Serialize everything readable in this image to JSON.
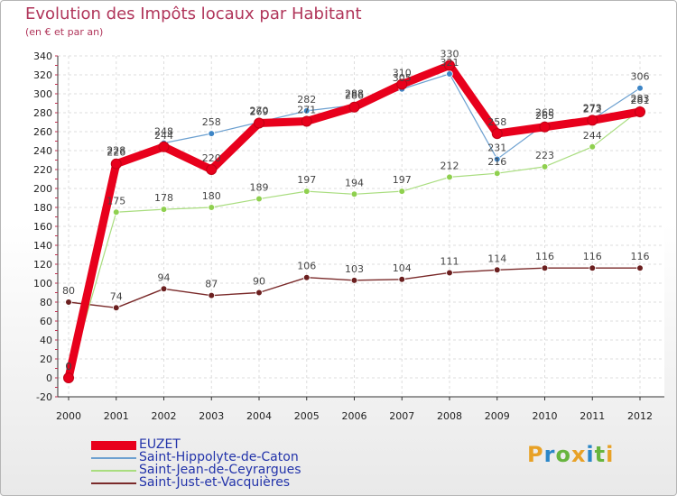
{
  "header": {
    "title": "Evolution des Impôts locaux par Habitant",
    "subtitle": "(en € et par an)"
  },
  "brand": {
    "text": "Proxiti",
    "colors": [
      "#e8a126",
      "#2a86c8",
      "#67b43e",
      "#e8a126",
      "#2a86c8",
      "#67b43e",
      "#e8a126"
    ]
  },
  "chart_data": {
    "type": "line",
    "title": "Evolution des Impôts locaux par Habitant",
    "ylabel": "(en € et par an)",
    "xlabel": "",
    "x": [
      "2000",
      "2001",
      "2002",
      "2003",
      "2004",
      "2005",
      "2006",
      "2007",
      "2008",
      "2009",
      "2010",
      "2011",
      "2012"
    ],
    "ylim": [
      -20,
      340
    ],
    "ytick_step": 20,
    "legend_position": "bottom-left",
    "series": [
      {
        "name": "EUZET",
        "color": "#e8001c",
        "values": [
          0,
          226,
          244,
          220,
          269,
          271,
          286,
          310,
          330,
          258,
          265,
          272,
          281
        ]
      },
      {
        "name": "Saint-Hippolyte-de-Caton",
        "color": "#6ca0d0",
        "values": [
          0,
          228,
          248,
          258,
          270,
          282,
          288,
          305,
          321,
          231,
          268,
          273,
          306
        ]
      },
      {
        "name": "Saint-Jean-de-Ceyrargues",
        "color": "#a9dd7f",
        "values": [
          0,
          175,
          178,
          180,
          189,
          197,
          194,
          197,
          212,
          216,
          223,
          244,
          283
        ]
      },
      {
        "name": "Saint-Just-et-Vacquières",
        "color": "#7a2a2a",
        "values": [
          80,
          74,
          94,
          87,
          90,
          106,
          103,
          104,
          111,
          114,
          116,
          116,
          116
        ]
      }
    ],
    "data_label_series_order": [
      3,
      2,
      1,
      0
    ]
  }
}
